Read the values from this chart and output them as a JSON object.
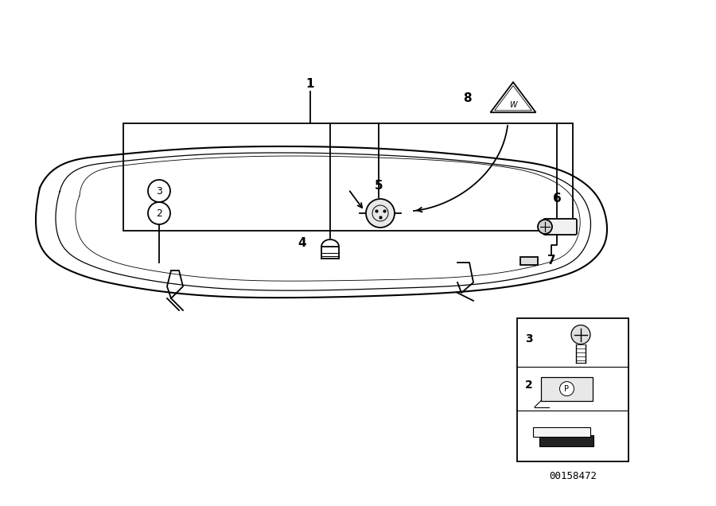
{
  "background_color": "#ffffff",
  "line_color": "#000000",
  "catalog_number": "00158472",
  "fig_width": 9.0,
  "fig_height": 6.36,
  "dpi": 100
}
